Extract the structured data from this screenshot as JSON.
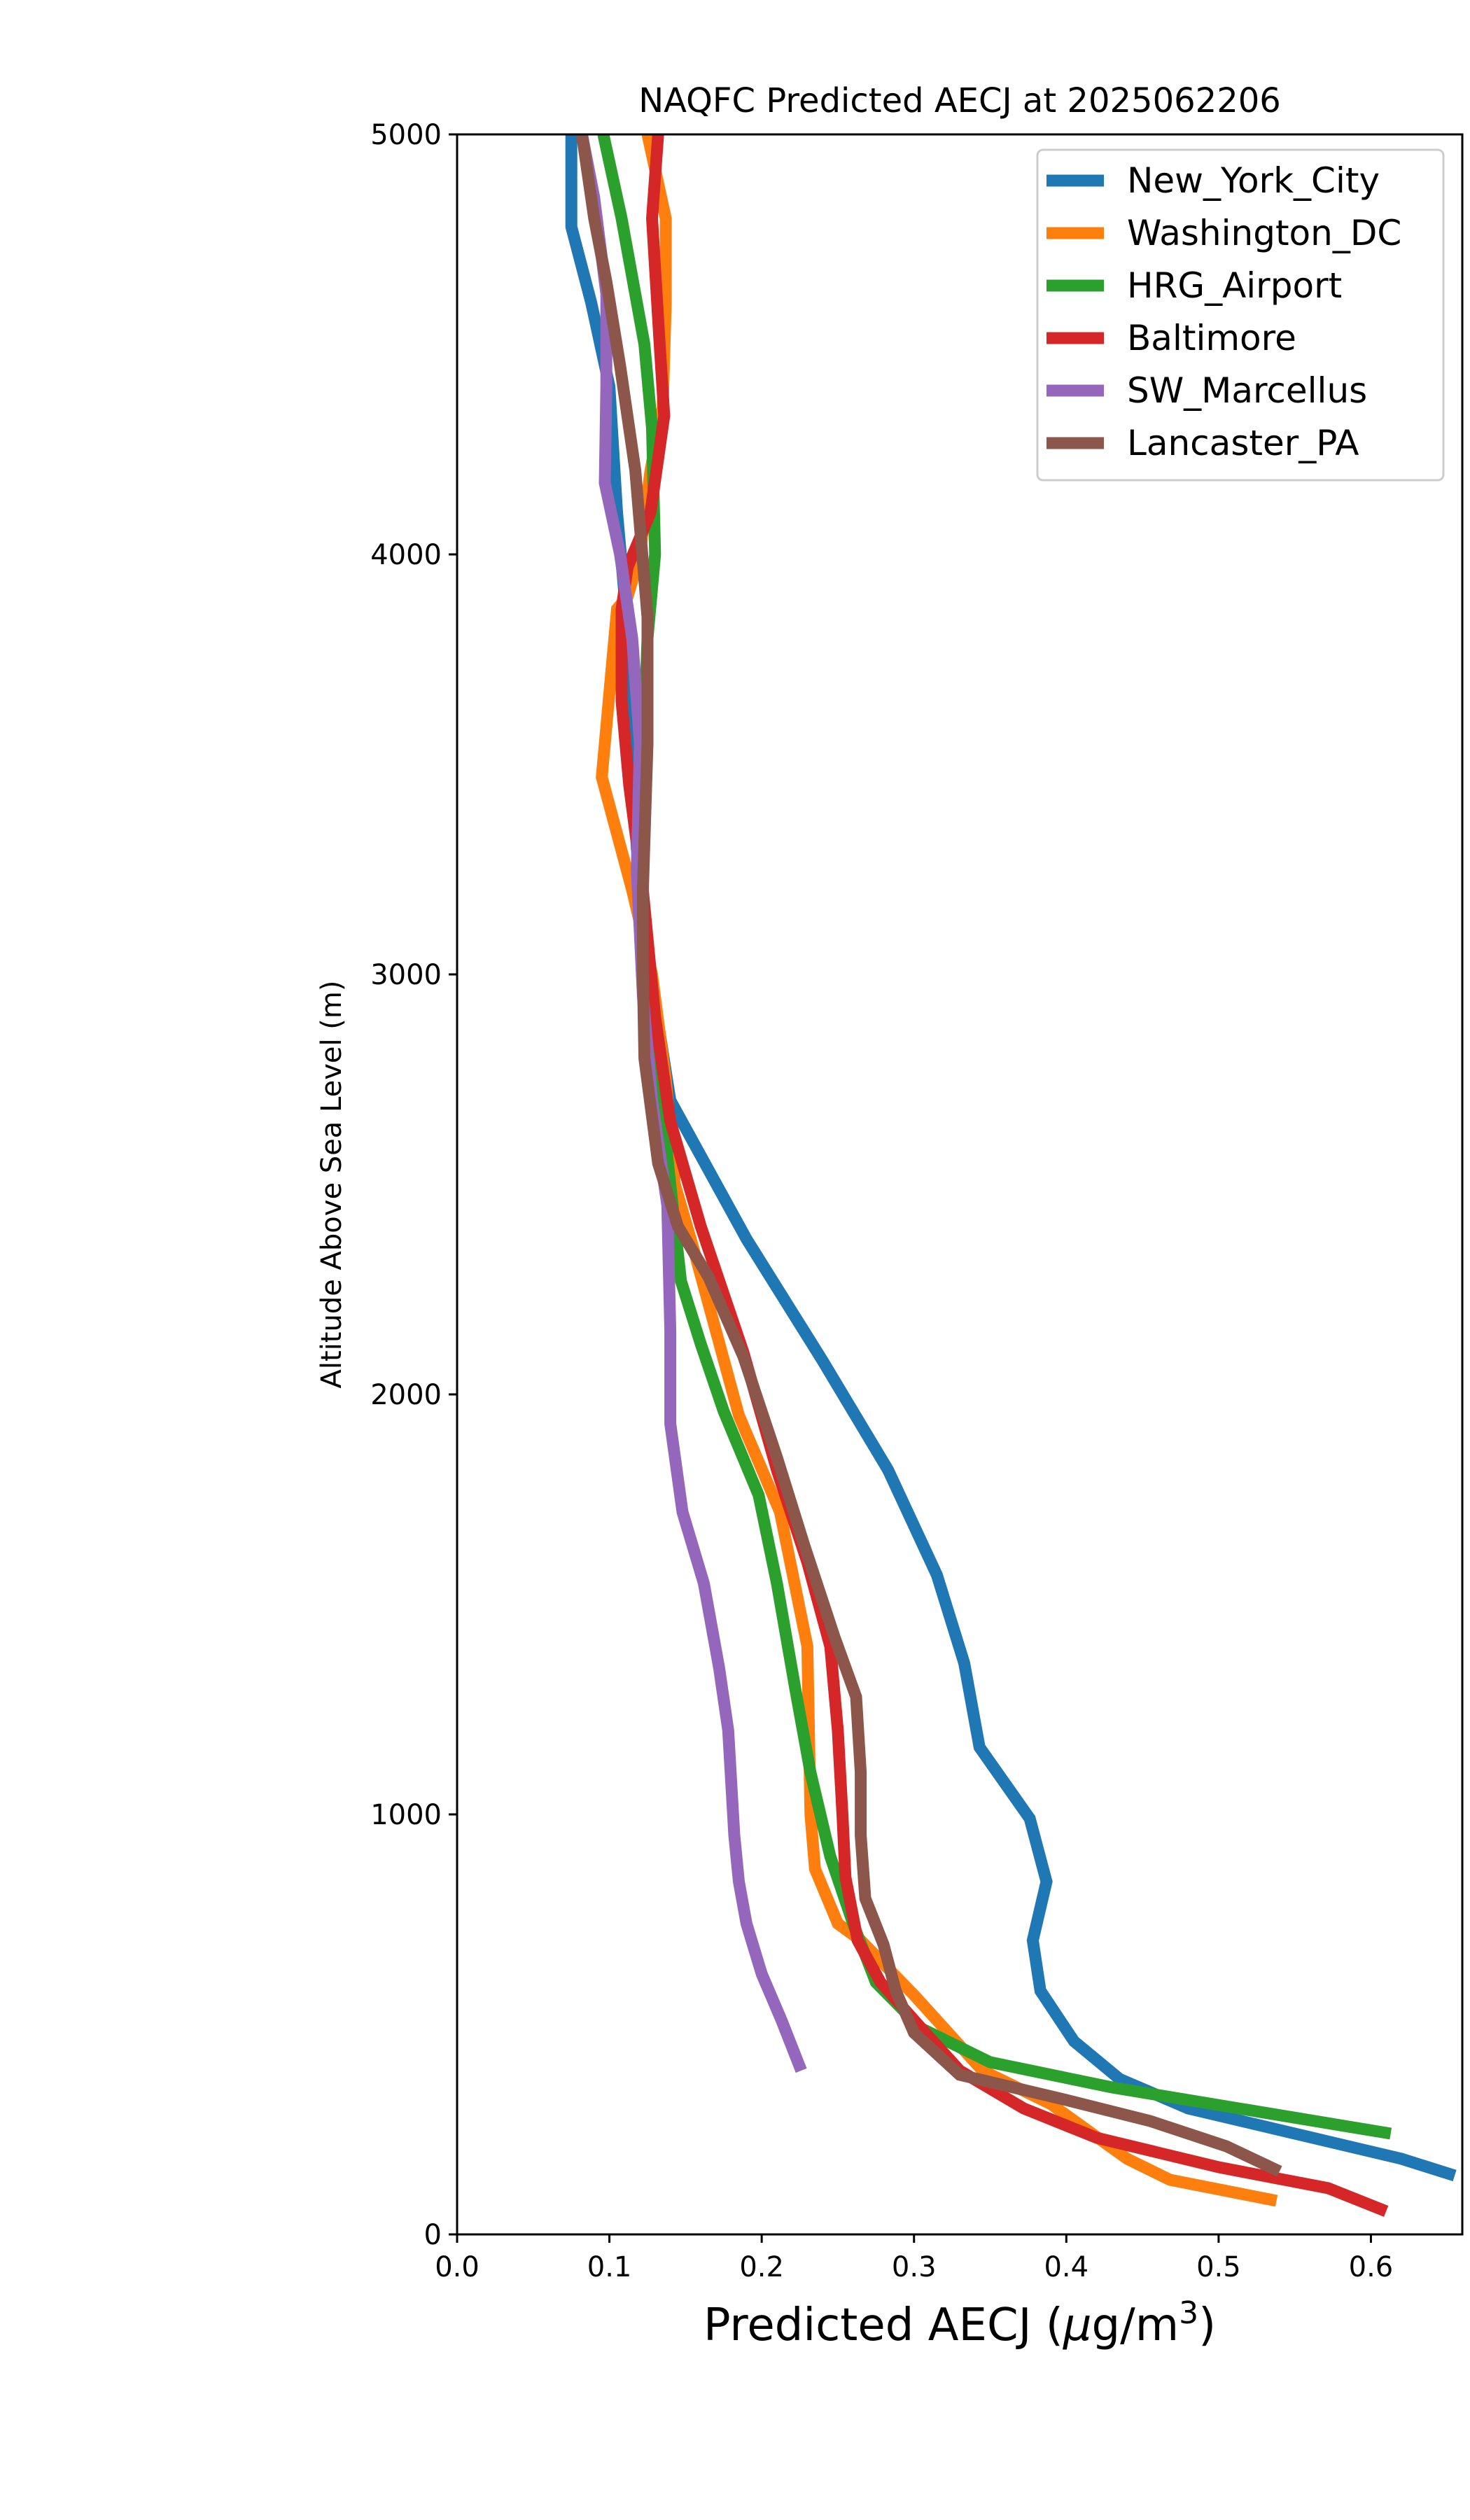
{
  "chart_data": {
    "type": "line",
    "title": "NAQFC Predicted AECJ at 2025062206",
    "xlabel": "Predicted AECJ (μg/m³)",
    "xlabel_parts": {
      "main": "Predicted AECJ (",
      "mu": "μ",
      "unit": "g/m",
      "sup": "3",
      "close": ")"
    },
    "ylabel": "Altitude Above Sea Level (m)",
    "xlim": [
      0.0,
      0.66
    ],
    "ylim": [
      0,
      5000
    ],
    "xticks": [
      "0.0",
      "0.1",
      "0.2",
      "0.3",
      "0.4",
      "0.5",
      "0.6"
    ],
    "yticks": [
      "0",
      "1000",
      "2000",
      "3000",
      "4000",
      "5000"
    ],
    "grid": false,
    "legend_position": "top-right",
    "series": [
      {
        "name": "New_York_City",
        "color": "#1f77b4",
        "points": [
          [
            0.655,
            140
          ],
          [
            0.62,
            180
          ],
          [
            0.55,
            240
          ],
          [
            0.48,
            300
          ],
          [
            0.435,
            370
          ],
          [
            0.405,
            460
          ],
          [
            0.383,
            580
          ],
          [
            0.378,
            700
          ],
          [
            0.387,
            840
          ],
          [
            0.376,
            990
          ],
          [
            0.343,
            1160
          ],
          [
            0.333,
            1360
          ],
          [
            0.315,
            1570
          ],
          [
            0.283,
            1820
          ],
          [
            0.24,
            2080
          ],
          [
            0.19,
            2370
          ],
          [
            0.14,
            2700
          ],
          [
            0.127,
            3000
          ],
          [
            0.118,
            3300
          ],
          [
            0.115,
            3600
          ],
          [
            0.11,
            3900
          ],
          [
            0.105,
            4100
          ],
          [
            0.1,
            4400
          ],
          [
            0.088,
            4600
          ],
          [
            0.075,
            4780
          ],
          [
            0.075,
            5000
          ]
        ]
      },
      {
        "name": "Washington_DC",
        "color": "#ff7f0e",
        "points": [
          [
            0.538,
            80
          ],
          [
            0.468,
            130
          ],
          [
            0.44,
            180
          ],
          [
            0.39,
            310
          ],
          [
            0.345,
            390
          ],
          [
            0.3,
            570
          ],
          [
            0.265,
            700
          ],
          [
            0.25,
            740
          ],
          [
            0.235,
            870
          ],
          [
            0.232,
            1000
          ],
          [
            0.23,
            1400
          ],
          [
            0.212,
            1720
          ],
          [
            0.185,
            1950
          ],
          [
            0.17,
            2150
          ],
          [
            0.155,
            2350
          ],
          [
            0.143,
            2500
          ],
          [
            0.137,
            2750
          ],
          [
            0.128,
            3000
          ],
          [
            0.115,
            3200
          ],
          [
            0.095,
            3470
          ],
          [
            0.102,
            3750
          ],
          [
            0.105,
            3870
          ],
          [
            0.112,
            3900
          ],
          [
            0.12,
            4000
          ],
          [
            0.127,
            4200
          ],
          [
            0.135,
            4350
          ],
          [
            0.137,
            4600
          ],
          [
            0.137,
            4800
          ],
          [
            0.125,
            5000
          ]
        ]
      },
      {
        "name": "HRG_Airport",
        "color": "#2ca02c",
        "points": [
          [
            0.613,
            240
          ],
          [
            0.43,
            350
          ],
          [
            0.35,
            410
          ],
          [
            0.305,
            490
          ],
          [
            0.275,
            600
          ],
          [
            0.26,
            740
          ],
          [
            0.245,
            900
          ],
          [
            0.232,
            1100
          ],
          [
            0.222,
            1300
          ],
          [
            0.21,
            1550
          ],
          [
            0.198,
            1760
          ],
          [
            0.175,
            1960
          ],
          [
            0.16,
            2120
          ],
          [
            0.147,
            2270
          ],
          [
            0.143,
            2400
          ],
          [
            0.137,
            2600
          ],
          [
            0.13,
            2800
          ],
          [
            0.122,
            3000
          ],
          [
            0.12,
            3200
          ],
          [
            0.122,
            3400
          ],
          [
            0.123,
            3600
          ],
          [
            0.125,
            3800
          ],
          [
            0.13,
            4000
          ],
          [
            0.128,
            4300
          ],
          [
            0.123,
            4500
          ],
          [
            0.108,
            4800
          ],
          [
            0.096,
            5000
          ]
        ]
      },
      {
        "name": "Baltimore",
        "color": "#d62728",
        "points": [
          [
            0.61,
            55
          ],
          [
            0.572,
            110
          ],
          [
            0.5,
            160
          ],
          [
            0.42,
            230
          ],
          [
            0.372,
            300
          ],
          [
            0.33,
            390
          ],
          [
            0.305,
            490
          ],
          [
            0.278,
            600
          ],
          [
            0.263,
            700
          ],
          [
            0.255,
            850
          ],
          [
            0.253,
            1000
          ],
          [
            0.25,
            1200
          ],
          [
            0.245,
            1400
          ],
          [
            0.23,
            1600
          ],
          [
            0.21,
            1820
          ],
          [
            0.188,
            2100
          ],
          [
            0.16,
            2400
          ],
          [
            0.14,
            2650
          ],
          [
            0.13,
            2900
          ],
          [
            0.122,
            3200
          ],
          [
            0.113,
            3450
          ],
          [
            0.108,
            3650
          ],
          [
            0.108,
            3870
          ],
          [
            0.112,
            3970
          ],
          [
            0.127,
            4100
          ],
          [
            0.136,
            4330
          ],
          [
            0.133,
            4500
          ],
          [
            0.128,
            4800
          ],
          [
            0.132,
            5000
          ]
        ]
      },
      {
        "name": "SW_Marcellus",
        "color": "#9467bd",
        "points": [
          [
            0.226,
            390
          ],
          [
            0.213,
            510
          ],
          [
            0.2,
            620
          ],
          [
            0.19,
            740
          ],
          [
            0.185,
            840
          ],
          [
            0.182,
            950
          ],
          [
            0.178,
            1200
          ],
          [
            0.172,
            1350
          ],
          [
            0.162,
            1550
          ],
          [
            0.148,
            1720
          ],
          [
            0.14,
            1930
          ],
          [
            0.14,
            2150
          ],
          [
            0.138,
            2450
          ],
          [
            0.128,
            2700
          ],
          [
            0.122,
            2950
          ],
          [
            0.118,
            3250
          ],
          [
            0.12,
            3550
          ],
          [
            0.115,
            3800
          ],
          [
            0.107,
            4000
          ],
          [
            0.097,
            4170
          ],
          [
            0.098,
            4400
          ],
          [
            0.098,
            4620
          ],
          [
            0.09,
            4850
          ],
          [
            0.082,
            5000
          ]
        ]
      },
      {
        "name": "Lancaster_PA",
        "color": "#8c564b",
        "points": [
          [
            0.54,
            150
          ],
          [
            0.505,
            210
          ],
          [
            0.455,
            270
          ],
          [
            0.4,
            320
          ],
          [
            0.33,
            380
          ],
          [
            0.3,
            480
          ],
          [
            0.288,
            580
          ],
          [
            0.28,
            690
          ],
          [
            0.268,
            800
          ],
          [
            0.265,
            950
          ],
          [
            0.265,
            1100
          ],
          [
            0.262,
            1280
          ],
          [
            0.248,
            1420
          ],
          [
            0.228,
            1640
          ],
          [
            0.21,
            1850
          ],
          [
            0.188,
            2090
          ],
          [
            0.165,
            2280
          ],
          [
            0.145,
            2400
          ],
          [
            0.132,
            2550
          ],
          [
            0.123,
            2800
          ],
          [
            0.122,
            3000
          ],
          [
            0.122,
            3200
          ],
          [
            0.125,
            3550
          ],
          [
            0.125,
            3850
          ],
          [
            0.117,
            4200
          ],
          [
            0.107,
            4450
          ],
          [
            0.098,
            4650
          ],
          [
            0.09,
            4800
          ],
          [
            0.082,
            5000
          ]
        ]
      }
    ]
  }
}
